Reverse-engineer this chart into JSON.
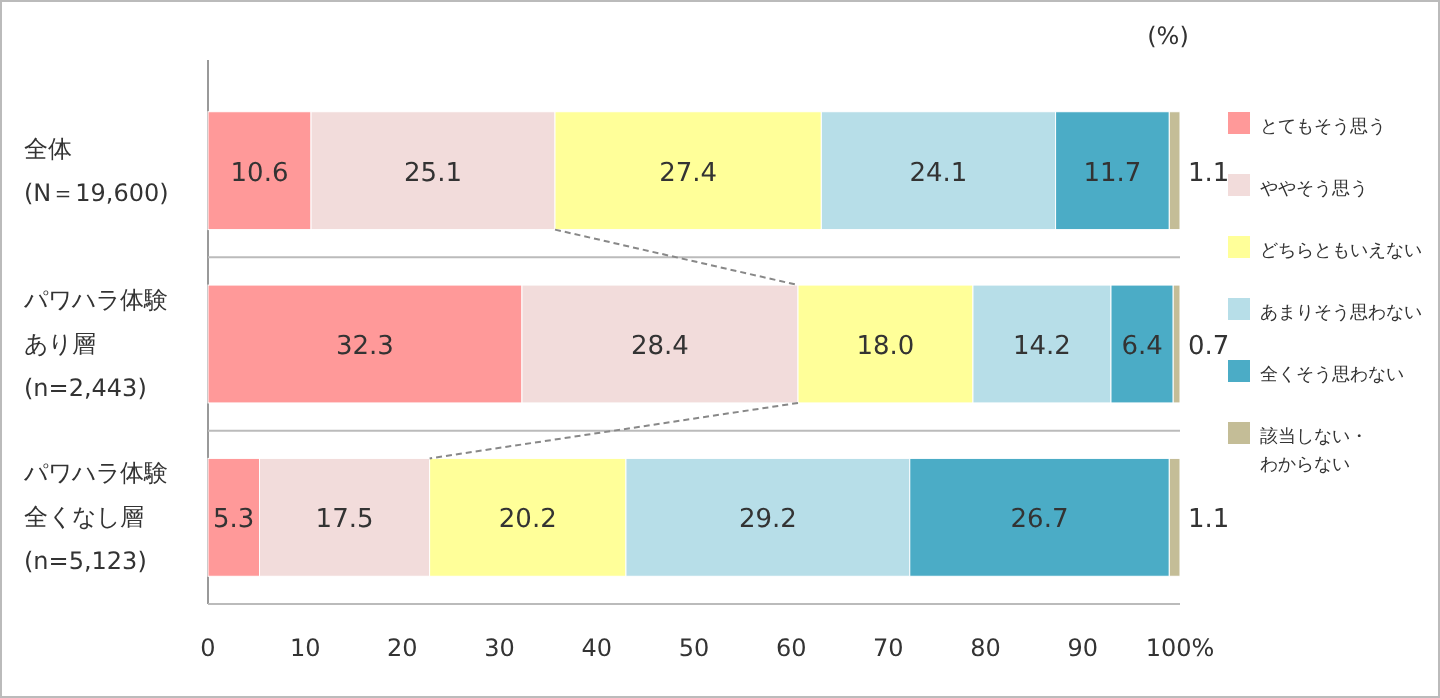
{
  "chart_data": {
    "type": "bar",
    "orientation": "horizontal",
    "stacked": true,
    "legend": "right",
    "grid": false,
    "categories": [
      "全体(N＝19,600)",
      "パワハラ体験あり層(n=2,443)",
      "パワハラ体験全くなし層(n=5,123)"
    ],
    "series": [
      {
        "name": "とてもそう思う",
        "color": "#ff9999",
        "values": [
          10.6,
          32.3,
          5.3
        ],
        "value_labels": [
          "10.6",
          "32.3",
          "5.3"
        ]
      },
      {
        "name": "ややそう思う",
        "color": "#f2dcdb",
        "values": [
          25.1,
          28.4,
          17.5
        ],
        "value_labels": [
          "25.1",
          "28.4",
          "17.5"
        ]
      },
      {
        "name": "どちらともいえない",
        "color": "#ffff99",
        "values": [
          27.4,
          18.0,
          20.2
        ],
        "value_labels": [
          "27.4",
          "18.0",
          "20.2"
        ]
      },
      {
        "name": "あまりそう思わない",
        "color": "#b7dee8",
        "values": [
          24.1,
          14.2,
          29.2
        ],
        "value_labels": [
          "24.1",
          "14.2",
          "29.2"
        ]
      },
      {
        "name": "全くそう思わない",
        "color": "#4bacc6",
        "values": [
          11.7,
          6.4,
          26.7
        ],
        "value_labels": [
          "11.7",
          "6.4",
          "26.7"
        ]
      },
      {
        "name": "該当しない・わからない",
        "color": "#c4bd97",
        "values": [
          1.1,
          0.7,
          1.1
        ],
        "value_labels": [
          "1.1",
          "0.7",
          "1.1"
        ]
      }
    ],
    "xlim": [
      0,
      100
    ],
    "xticks": [
      0,
      10,
      20,
      30,
      40,
      50,
      60,
      70,
      80,
      90,
      {
        "value": 100,
        "label": "100%"
      }
    ],
    "annotations": [
      "(%)"
    ]
  }
}
